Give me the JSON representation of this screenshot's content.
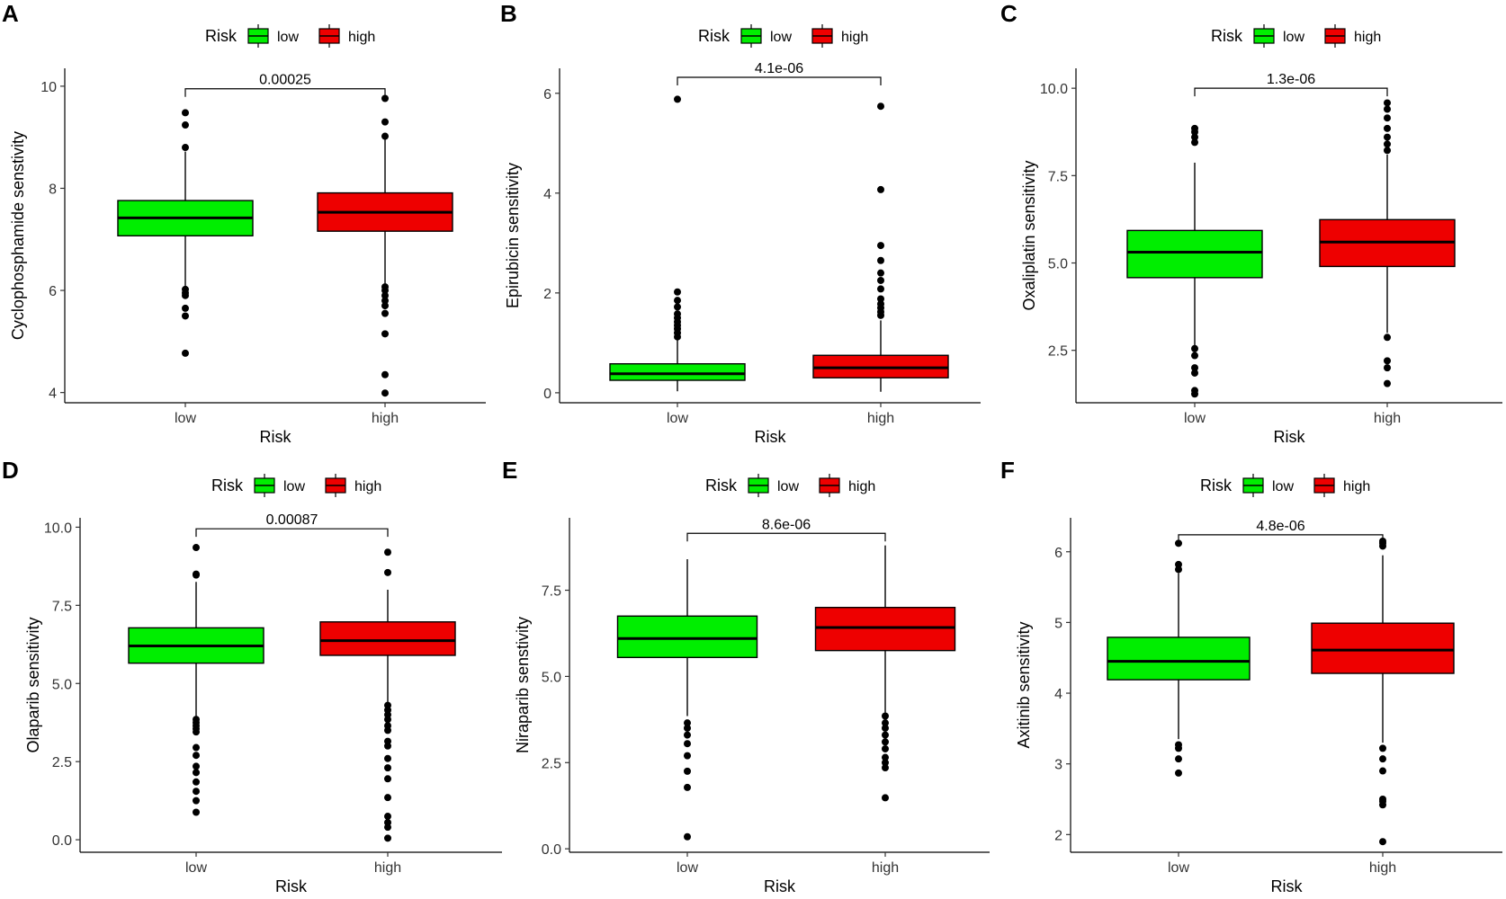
{
  "figure": {
    "panels": [
      "A",
      "B",
      "C",
      "D",
      "E",
      "F"
    ]
  },
  "colors": {
    "low": "#00ee00",
    "high": "#ee0000",
    "outline": "#000000"
  },
  "chart_data": [
    {
      "panel": "A",
      "type": "boxplot",
      "legend_title": "Risk",
      "legend_labels": [
        "low",
        "high"
      ],
      "categories": [
        "low",
        "high"
      ],
      "xlabel": "Risk",
      "ylabel": "Cyclophosphamide senstivity",
      "ylim": [
        3.8,
        10.35
      ],
      "yticks": [
        4,
        6,
        8,
        10
      ],
      "ytick_labels": [
        "4",
        "6",
        "8",
        "10"
      ],
      "pvalue": "0.00025",
      "bracket_y": 9.95,
      "boxes": [
        {
          "group": "low",
          "q1": 7.07,
          "median": 7.42,
          "q3": 7.76,
          "whisker_low": 6.05,
          "whisker_high": 8.72,
          "outliers": [
            9.48,
            9.24,
            8.8,
            6.02,
            5.95,
            5.9,
            5.65,
            5.5,
            4.77
          ]
        },
        {
          "group": "high",
          "q1": 7.16,
          "median": 7.53,
          "q3": 7.91,
          "whisker_low": 6.1,
          "whisker_high": 9.0,
          "outliers": [
            9.76,
            9.3,
            9.02,
            6.07,
            6.0,
            5.9,
            5.8,
            5.7,
            5.55,
            5.15,
            4.35,
            3.99
          ]
        }
      ]
    },
    {
      "panel": "B",
      "type": "boxplot",
      "legend_title": "Risk",
      "legend_labels": [
        "low",
        "high"
      ],
      "categories": [
        "low",
        "high"
      ],
      "xlabel": "Risk",
      "ylabel": "Epirubicin sensitivity",
      "ylim": [
        -0.2,
        6.5
      ],
      "yticks": [
        0,
        2,
        4,
        6
      ],
      "ytick_labels": [
        "0",
        "2",
        "4",
        "6"
      ],
      "pvalue": "4.1e-06",
      "bracket_y": 6.32,
      "boxes": [
        {
          "group": "low",
          "q1": 0.25,
          "median": 0.38,
          "q3": 0.58,
          "whisker_low": 0.03,
          "whisker_high": 1.07,
          "outliers": [
            5.88,
            2.02,
            1.85,
            1.72,
            1.58,
            1.5,
            1.42,
            1.35,
            1.28,
            1.2,
            1.12
          ]
        },
        {
          "group": "high",
          "q1": 0.3,
          "median": 0.5,
          "q3": 0.75,
          "whisker_low": 0.02,
          "whisker_high": 1.45,
          "outliers": [
            5.74,
            4.07,
            2.95,
            2.65,
            2.4,
            2.25,
            2.08,
            1.88,
            1.78,
            1.7,
            1.62,
            1.55
          ]
        }
      ]
    },
    {
      "panel": "C",
      "type": "boxplot",
      "legend_title": "Risk",
      "legend_labels": [
        "low",
        "high"
      ],
      "categories": [
        "low",
        "high"
      ],
      "xlabel": "Risk",
      "ylabel": "Oxaliplatin sensitivity",
      "ylim": [
        1.0,
        10.57
      ],
      "yticks": [
        2.5,
        5.0,
        7.5,
        10.0
      ],
      "ytick_labels": [
        "2.5",
        "5.0",
        "7.5",
        "10.0"
      ],
      "pvalue": "1.3e-06",
      "bracket_y": 10.0,
      "boxes": [
        {
          "group": "low",
          "q1": 4.58,
          "median": 5.31,
          "q3": 5.93,
          "whisker_low": 2.6,
          "whisker_high": 7.87,
          "outliers": [
            8.85,
            8.75,
            8.6,
            8.45,
            2.55,
            2.35,
            2.0,
            1.85,
            1.35,
            1.25
          ]
        },
        {
          "group": "high",
          "q1": 4.9,
          "median": 5.6,
          "q3": 6.24,
          "whisker_low": 3.0,
          "whisker_high": 8.1,
          "outliers": [
            9.58,
            9.4,
            9.15,
            8.85,
            8.6,
            8.4,
            8.22,
            2.87,
            2.2,
            2.0,
            1.55
          ]
        }
      ]
    },
    {
      "panel": "D",
      "type": "boxplot",
      "legend_title": "Risk",
      "legend_labels": [
        "low",
        "high"
      ],
      "categories": [
        "low",
        "high"
      ],
      "xlabel": "Risk",
      "ylabel": "Olaparib sensitivity",
      "ylim": [
        -0.4,
        10.3
      ],
      "yticks": [
        0.0,
        2.5,
        5.0,
        7.5,
        10.0
      ],
      "ytick_labels": [
        "0.0",
        "2.5",
        "5.0",
        "7.5",
        "10.0"
      ],
      "pvalue": "0.00087",
      "bracket_y": 9.95,
      "boxes": [
        {
          "group": "low",
          "q1": 5.65,
          "median": 6.2,
          "q3": 6.78,
          "whisker_low": 3.9,
          "whisker_high": 8.25,
          "outliers": [
            9.35,
            8.5,
            8.47,
            3.85,
            3.75,
            3.65,
            3.55,
            3.45,
            2.95,
            2.7,
            2.35,
            2.15,
            1.85,
            1.55,
            1.25,
            0.88
          ]
        },
        {
          "group": "high",
          "q1": 5.9,
          "median": 6.37,
          "q3": 6.97,
          "whisker_low": 4.4,
          "whisker_high": 8.0,
          "outliers": [
            9.2,
            8.55,
            4.3,
            4.15,
            4.0,
            3.85,
            3.65,
            3.5,
            3.15,
            3.0,
            2.6,
            2.3,
            1.95,
            1.35,
            0.75,
            0.55,
            0.4,
            0.05
          ]
        }
      ]
    },
    {
      "panel": "E",
      "type": "boxplot",
      "legend_title": "Risk",
      "legend_labels": [
        "low",
        "high"
      ],
      "categories": [
        "low",
        "high"
      ],
      "xlabel": "Risk",
      "ylabel": "Niraparib senstivity",
      "ylim": [
        -0.1,
        9.6
      ],
      "yticks": [
        0.0,
        2.5,
        5.0,
        7.5
      ],
      "ytick_labels": [
        "0.0",
        "2.5",
        "5.0",
        "7.5"
      ],
      "pvalue": "8.6e-06",
      "bracket_y": 9.15,
      "boxes": [
        {
          "group": "low",
          "q1": 5.55,
          "median": 6.1,
          "q3": 6.75,
          "whisker_low": 3.85,
          "whisker_high": 8.4,
          "outliers": [
            3.65,
            3.5,
            3.3,
            3.05,
            2.7,
            2.25,
            1.78,
            0.35
          ]
        },
        {
          "group": "high",
          "q1": 5.75,
          "median": 6.42,
          "q3": 7.0,
          "whisker_low": 3.95,
          "whisker_high": 8.8,
          "outliers": [
            3.85,
            3.65,
            3.5,
            3.3,
            3.1,
            2.9,
            2.65,
            2.5,
            2.35,
            1.48
          ]
        }
      ]
    },
    {
      "panel": "F",
      "type": "boxplot",
      "legend_title": "Risk",
      "legend_labels": [
        "low",
        "high"
      ],
      "categories": [
        "low",
        "high"
      ],
      "xlabel": "Risk",
      "ylabel": "Axitinib sensitivity",
      "ylim": [
        1.75,
        6.48
      ],
      "yticks": [
        2,
        3,
        4,
        5,
        6
      ],
      "ytick_labels": [
        "2",
        "3",
        "4",
        "5",
        "6"
      ],
      "pvalue": "4.8e-06",
      "bracket_y": 6.24,
      "boxes": [
        {
          "group": "low",
          "q1": 4.19,
          "median": 4.45,
          "q3": 4.79,
          "whisker_low": 3.35,
          "whisker_high": 5.7,
          "outliers": [
            6.12,
            5.82,
            5.75,
            3.27,
            3.22,
            3.07,
            2.87
          ]
        },
        {
          "group": "high",
          "q1": 4.28,
          "median": 4.61,
          "q3": 4.99,
          "whisker_low": 3.3,
          "whisker_high": 5.95,
          "outliers": [
            6.15,
            6.12,
            6.08,
            3.22,
            3.07,
            2.9,
            2.5,
            2.47,
            2.42,
            1.9
          ]
        }
      ]
    }
  ]
}
